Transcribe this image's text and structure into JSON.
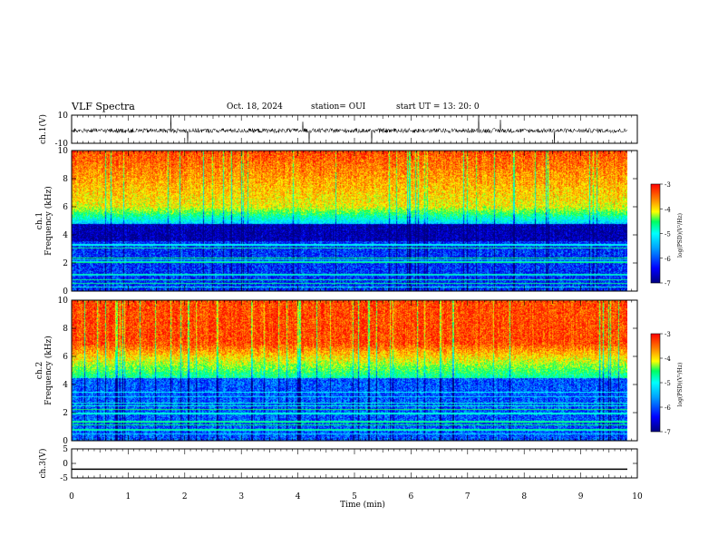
{
  "header": {
    "title": "VLF Spectra",
    "date": "Oct. 18, 2024",
    "station": "station= OUI",
    "start": "start UT = 13: 20: 0"
  },
  "chart_data": [
    {
      "type": "line",
      "panel": "ch1-waveform",
      "ylabel": "ch.1(V)",
      "ylim": [
        -10,
        10
      ],
      "yticks": [
        "10",
        "-10"
      ],
      "xlim": [
        0,
        10
      ],
      "series": [
        {
          "description_values": "noisy waveform centered near 0 V with sparse spikes",
          "values": [
            0
          ]
        }
      ]
    },
    {
      "type": "heatmap",
      "panel": "ch1-spectrogram",
      "ylabel": "ch.1\nFrequency (kHz)",
      "ylim": [
        0,
        10
      ],
      "yticks": [
        "0",
        "2",
        "4",
        "6",
        "8",
        "10"
      ],
      "xlim": [
        0,
        10
      ],
      "colorbar": {
        "label": "log(PSD)(V²/Hz)",
        "range": [
          -7,
          -3
        ],
        "ticks": [
          "-3",
          "-4",
          "-5",
          "-6",
          "-7"
        ]
      }
    },
    {
      "type": "heatmap",
      "panel": "ch2-spectrogram",
      "ylabel": "ch.2\nFrequency (kHz)",
      "ylim": [
        0,
        10
      ],
      "yticks": [
        "0",
        "2",
        "4",
        "6",
        "8",
        "10"
      ],
      "xlim": [
        0,
        10
      ],
      "colorbar": {
        "label": "log(PSD)(V²/Hz)",
        "range": [
          -7,
          -3
        ],
        "ticks": [
          "-3",
          "-4",
          "-5",
          "-6",
          "-7"
        ]
      }
    },
    {
      "type": "line",
      "panel": "ch3-waveform",
      "ylabel": "ch.3(V)",
      "ylim": [
        -5,
        5
      ],
      "yticks": [
        "5",
        "0",
        "-5"
      ],
      "xlim": [
        0,
        10
      ],
      "series": [
        {
          "values": [
            -2,
            -2
          ]
        }
      ]
    }
  ],
  "xaxis": {
    "label": "Time (min)",
    "ticks": [
      "0",
      "1",
      "2",
      "3",
      "4",
      "5",
      "6",
      "7",
      "8",
      "9",
      "10"
    ]
  },
  "colors": {
    "colormap": [
      "#000080",
      "#0000ff",
      "#00a0ff",
      "#00ffff",
      "#00ff60",
      "#ffff00",
      "#ff8000",
      "#ff0000"
    ]
  }
}
